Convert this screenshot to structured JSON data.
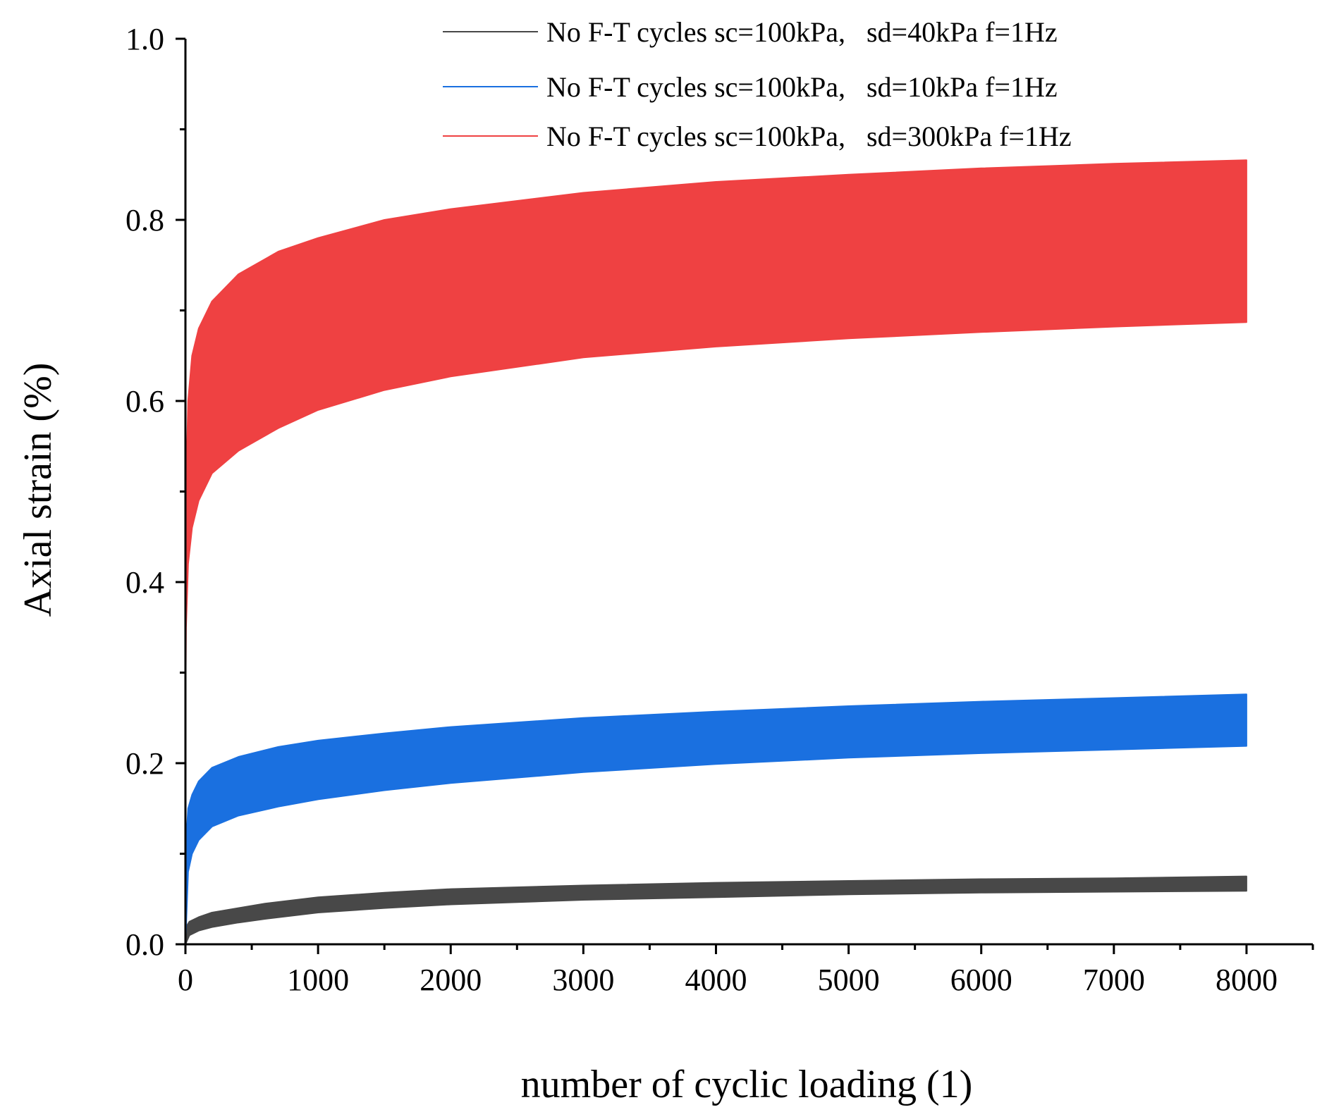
{
  "chart_data": {
    "type": "area",
    "title": "",
    "xlabel": "number of cyclic loading (1)",
    "ylabel": "Axial strain (%)",
    "xlim": [
      0,
      8500
    ],
    "ylim": [
      0,
      1.0
    ],
    "x_major_ticks": [
      0,
      1000,
      2000,
      3000,
      4000,
      5000,
      6000,
      7000,
      8000
    ],
    "x_tick_labels": [
      "0",
      "1000",
      "2000",
      "3000",
      "4000",
      "5000",
      "6000",
      "7000",
      "8000"
    ],
    "x_minor_ticks": [
      500,
      1500,
      2500,
      3500,
      4500,
      5500,
      6500,
      7500,
      8500
    ],
    "y_major_ticks": [
      0.0,
      0.2,
      0.4,
      0.6,
      0.8,
      1.0
    ],
    "y_tick_labels": [
      "0.0",
      "0.2",
      "0.4",
      "0.6",
      "0.8",
      "1.0"
    ],
    "y_minor_ticks": [
      0.1,
      0.3,
      0.5,
      0.7,
      0.9
    ],
    "grid": false,
    "legend_position": "top-right",
    "series": [
      {
        "name": "No F-T cycles sc=100kPa,   sd=40kPa f=1Hz",
        "color": "#484848",
        "x": [
          0,
          30,
          100,
          200,
          400,
          600,
          1000,
          1500,
          2000,
          3000,
          4000,
          5000,
          6000,
          7000,
          8000
        ],
        "upper": [
          0.018,
          0.025,
          0.03,
          0.035,
          0.04,
          0.045,
          0.052,
          0.057,
          0.061,
          0.065,
          0.068,
          0.07,
          0.072,
          0.073,
          0.075
        ],
        "lower": [
          0.0,
          0.01,
          0.015,
          0.019,
          0.024,
          0.028,
          0.035,
          0.04,
          0.044,
          0.049,
          0.052,
          0.055,
          0.057,
          0.058,
          0.059
        ]
      },
      {
        "name": "No F-T cycles sc=100kPa,   sd=10kPa f=1Hz",
        "color": "#1a70e0",
        "x": [
          0,
          20,
          50,
          100,
          200,
          400,
          700,
          1000,
          1500,
          2000,
          3000,
          4000,
          5000,
          6000,
          7000,
          8000
        ],
        "upper": [
          0.1,
          0.15,
          0.165,
          0.18,
          0.195,
          0.207,
          0.218,
          0.225,
          0.233,
          0.24,
          0.25,
          0.257,
          0.263,
          0.268,
          0.272,
          0.276
        ],
        "lower": [
          0.0,
          0.08,
          0.1,
          0.115,
          0.13,
          0.142,
          0.152,
          0.16,
          0.17,
          0.178,
          0.19,
          0.199,
          0.206,
          0.211,
          0.215,
          0.219
        ]
      },
      {
        "name": "No F-T cycles sc=100kPa,   sd=300kPa f=1Hz",
        "color": "#ef4142",
        "x": [
          0,
          5,
          20,
          50,
          100,
          200,
          400,
          700,
          1000,
          1500,
          2000,
          3000,
          4000,
          5000,
          6000,
          7000,
          8000
        ],
        "upper": [
          0.25,
          0.5,
          0.6,
          0.65,
          0.68,
          0.71,
          0.74,
          0.765,
          0.78,
          0.8,
          0.812,
          0.83,
          0.842,
          0.85,
          0.857,
          0.862,
          0.866
        ],
        "lower": [
          0.25,
          0.35,
          0.42,
          0.46,
          0.49,
          0.52,
          0.545,
          0.57,
          0.59,
          0.612,
          0.627,
          0.648,
          0.66,
          0.669,
          0.676,
          0.682,
          0.687
        ]
      }
    ]
  }
}
